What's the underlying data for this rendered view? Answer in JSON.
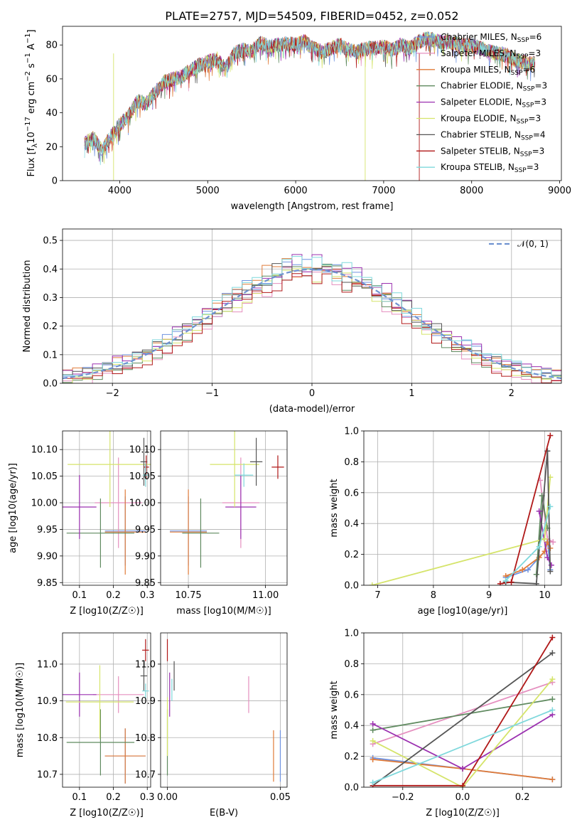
{
  "colors": {
    "chabrier_miles": "#6f92e0",
    "salpeter_miles": "#e58fbf",
    "kroupa_miles": "#e07b39",
    "chabrier_elodie": "#5f8a5f",
    "salpeter_elodie": "#9b30b0",
    "kroupa_elodie": "#d5e46a",
    "chabrier_stelib": "#555555",
    "salpeter_stelib": "#b01818",
    "kroupa_stelib": "#7fd8dc",
    "normal": "#6f92d0",
    "grid": "#b0b0b0"
  },
  "legend_entries": [
    {
      "base": "Chabrier MILES, N",
      "sub": "SSP",
      "tail": "=6"
    },
    {
      "base": "Salpeter MILES, N",
      "sub": "SSP",
      "tail": "=3"
    },
    {
      "base": "Kroupa MILES, N",
      "sub": "SSP",
      "tail": "=6"
    },
    {
      "base": "Chabrier ELODIE, N",
      "sub": "SSP",
      "tail": "=3"
    },
    {
      "base": "Salpeter ELODIE, N",
      "sub": "SSP",
      "tail": "=3"
    },
    {
      "base": "Kroupa ELODIE, N",
      "sub": "SSP",
      "tail": "=3"
    },
    {
      "base": "Chabrier STELIB, N",
      "sub": "SSP",
      "tail": "=4"
    },
    {
      "base": "Salpeter STELIB, N",
      "sub": "SSP",
      "tail": "=3"
    },
    {
      "base": "Kroupa STELIB, N",
      "sub": "SSP",
      "tail": "=3"
    }
  ],
  "chart_data": [
    {
      "type": "line",
      "title": "PLATE=2757, MJD=54509, FIBERID=0452, z=0.052",
      "xlabel": "wavelength [Angstrom, rest frame]",
      "ylabel": "Flux [fλ10⁻¹⁷ erg cm⁻² s⁻¹ A⁻¹]",
      "xlim": [
        3350,
        9020
      ],
      "ylim": [
        0,
        91
      ],
      "xticks": [
        4000,
        5000,
        6000,
        7000,
        8000,
        9000
      ],
      "yticks": [
        0,
        20,
        40,
        60,
        80
      ],
      "spectrum_envelope": {
        "x": [
          3600,
          3700,
          3800,
          3900,
          4000,
          4100,
          4200,
          4300,
          4400,
          4500,
          4600,
          4700,
          4800,
          4900,
          5000,
          5100,
          5200,
          5300,
          5400,
          5500,
          5600,
          5700,
          5800,
          5900,
          6000,
          6100,
          6200,
          6300,
          6400,
          6500,
          6600,
          6700,
          6800,
          6900,
          7000,
          7100,
          7200,
          7300,
          7400,
          7500,
          7600,
          7700,
          7800,
          7900,
          8000,
          8100,
          8200,
          8300,
          8400,
          8500,
          8600,
          8700
        ],
        "y": [
          22,
          25,
          18,
          26,
          33,
          38,
          47,
          45,
          52,
          58,
          60,
          61,
          65,
          68,
          70,
          72,
          66,
          75,
          77,
          76,
          81,
          79,
          80,
          81,
          80,
          82,
          78,
          76,
          78,
          80,
          77,
          76,
          78,
          78,
          79,
          77,
          80,
          78,
          82,
          84,
          82,
          82,
          81,
          80,
          80,
          78,
          76,
          75,
          74,
          71,
          70,
          69
        ]
      },
      "legend_loc": "upper right"
    },
    {
      "type": "histogram",
      "xlabel": "(data-model)/error",
      "ylabel": "Normed distribution",
      "xlim": [
        -2.5,
        2.5
      ],
      "ylim": [
        0,
        0.54
      ],
      "xticks": [
        -2,
        -1,
        0,
        1,
        2
      ],
      "yticks": [
        0.0,
        0.1,
        0.2,
        0.3,
        0.4,
        0.5
      ],
      "bin_width": 0.1,
      "bin_centers": [
        -2.45,
        -2.35,
        -2.25,
        -2.15,
        -2.05,
        -1.95,
        -1.85,
        -1.75,
        -1.65,
        -1.55,
        -1.45,
        -1.35,
        -1.25,
        -1.15,
        -1.05,
        -0.95,
        -0.85,
        -0.75,
        -0.65,
        -0.55,
        -0.45,
        -0.35,
        -0.25,
        -0.15,
        -0.05,
        0.05,
        0.15,
        0.25,
        0.35,
        0.45,
        0.55,
        0.65,
        0.75,
        0.85,
        0.95,
        1.05,
        1.15,
        1.25,
        1.35,
        1.45,
        1.55,
        1.65,
        1.75,
        1.85,
        1.95,
        2.05,
        2.15,
        2.25,
        2.35,
        2.45
      ],
      "series_offsets": [
        0.01,
        -0.02,
        0.015,
        -0.012,
        0.02,
        -0.008,
        0.005,
        -0.018,
        0.012
      ],
      "legend": "𝒩(0, 1)",
      "legend_loc": "upper right"
    },
    {
      "type": "scatter",
      "subtype": "errorbar",
      "xlabel": "Z [log10(Z/Z☉)]",
      "ylabel": "age [log10(age/yr)]",
      "xlim": [
        0.05,
        0.31
      ],
      "ylim": [
        9.845,
        10.135
      ],
      "xticks": [
        0.1,
        0.2,
        0.3
      ],
      "yticks": [
        9.85,
        9.9,
        9.95,
        10.0,
        10.05,
        10.1
      ],
      "points": [
        {
          "x": 0.235,
          "y": 9.947,
          "xerr": 0.06,
          "yerr": 0.065
        },
        {
          "x": 0.215,
          "y": 10.0,
          "xerr": 0.07,
          "yerr": 0.085
        },
        {
          "x": 0.235,
          "y": 9.945,
          "xerr": 0.06,
          "yerr": 0.08
        },
        {
          "x": 0.162,
          "y": 9.943,
          "xerr": 0.1,
          "yerr": 0.065
        },
        {
          "x": 0.1,
          "y": 9.992,
          "xerr": 0.05,
          "yerr": 0.06
        },
        {
          "x": 0.19,
          "y": 10.072,
          "xerr": 0.125,
          "yerr": 0.08
        },
        {
          "x": 0.29,
          "y": 10.077,
          "xerr": 0.01,
          "yerr": 0.045
        },
        {
          "x": 0.297,
          "y": 10.067,
          "xerr": 0.008,
          "yerr": 0.022
        },
        {
          "x": 0.295,
          "y": 10.052,
          "xerr": 0.008,
          "yerr": 0.022
        }
      ]
    },
    {
      "type": "scatter",
      "subtype": "errorbar",
      "xlabel": "mass [log10(M/M☉)]",
      "ylabel": "",
      "xlim": [
        10.66,
        11.07
      ],
      "ylim": [
        9.845,
        10.135
      ],
      "xticks": [
        10.75,
        11.0
      ],
      "yticks": [
        9.85,
        9.9,
        9.95,
        10.0,
        10.05,
        10.1
      ],
      "points": [
        {
          "x": 10.75,
          "y": 9.947,
          "xerr": 0.06,
          "yerr": 0.065
        },
        {
          "x": 10.92,
          "y": 10.0,
          "xerr": 0.06,
          "yerr": 0.085
        },
        {
          "x": 10.75,
          "y": 9.945,
          "xerr": 0.06,
          "yerr": 0.08
        },
        {
          "x": 10.79,
          "y": 9.943,
          "xerr": 0.06,
          "yerr": 0.065
        },
        {
          "x": 10.92,
          "y": 9.992,
          "xerr": 0.05,
          "yerr": 0.06
        },
        {
          "x": 10.9,
          "y": 10.072,
          "xerr": 0.08,
          "yerr": 0.08
        },
        {
          "x": 10.97,
          "y": 10.077,
          "xerr": 0.02,
          "yerr": 0.045
        },
        {
          "x": 11.04,
          "y": 10.067,
          "xerr": 0.02,
          "yerr": 0.022
        },
        {
          "x": 10.93,
          "y": 10.052,
          "xerr": 0.03,
          "yerr": 0.022
        }
      ]
    },
    {
      "type": "line",
      "xlabel": "age [log10(age/yr)]",
      "ylabel": "mass weight",
      "xlim": [
        6.75,
        10.3
      ],
      "ylim": [
        0,
        1.0
      ],
      "xticks": [
        7,
        8,
        9,
        10
      ],
      "yticks": [
        0.0,
        0.2,
        0.4,
        0.6,
        0.8,
        1.0
      ],
      "series": [
        {
          "x": [
            9.3,
            9.7,
            10.0,
            10.05,
            10.1
          ],
          "y": [
            0.05,
            0.1,
            0.22,
            0.3,
            0.1
          ]
        },
        {
          "x": [
            9.92,
            10.05,
            10.15
          ],
          "y": [
            0.68,
            0.3,
            0.28
          ]
        },
        {
          "x": [
            9.3,
            9.6,
            9.9,
            10.0,
            10.05,
            10.1
          ],
          "y": [
            0.06,
            0.1,
            0.18,
            0.22,
            0.28,
            0.24
          ]
        },
        {
          "x": [
            9.85,
            9.95,
            10.05
          ],
          "y": [
            0.07,
            0.58,
            0.37
          ]
        },
        {
          "x": [
            9.9,
            10.05,
            10.12
          ],
          "y": [
            0.48,
            0.18,
            0.13
          ]
        },
        {
          "x": [
            6.9,
            10.0,
            10.1
          ],
          "y": [
            0.0,
            0.3,
            0.7
          ]
        },
        {
          "x": [
            9.3,
            9.85,
            10.05,
            10.1
          ],
          "y": [
            0.02,
            0.01,
            0.87,
            0.09
          ]
        },
        {
          "x": [
            9.2,
            9.4,
            10.1
          ],
          "y": [
            0.01,
            0.02,
            0.97
          ]
        },
        {
          "x": [
            9.3,
            9.9,
            10.1
          ],
          "y": [
            0.03,
            0.25,
            0.51
          ]
        }
      ]
    },
    {
      "type": "scatter",
      "subtype": "errorbar",
      "xlabel": "Z [log10(Z/Z☉)]",
      "ylabel": "mass [log10(M/M☉)]",
      "xlim": [
        0.05,
        0.31
      ],
      "ylim": [
        10.665,
        11.085
      ],
      "xticks": [
        0.1,
        0.2,
        0.3
      ],
      "yticks": [
        10.7,
        10.8,
        10.9,
        11.0
      ],
      "points": [
        {
          "x": 0.235,
          "y": 10.75,
          "xerr": 0.06,
          "yerr": 0.075
        },
        {
          "x": 0.215,
          "y": 10.917,
          "xerr": 0.075,
          "yerr": 0.05
        },
        {
          "x": 0.235,
          "y": 10.75,
          "xerr": 0.06,
          "yerr": 0.075
        },
        {
          "x": 0.162,
          "y": 10.787,
          "xerr": 0.1,
          "yerr": 0.09
        },
        {
          "x": 0.1,
          "y": 10.917,
          "xerr": 0.05,
          "yerr": 0.06
        },
        {
          "x": 0.16,
          "y": 10.897,
          "xerr": 0.1,
          "yerr": 0.1
        },
        {
          "x": 0.29,
          "y": 10.968,
          "xerr": 0.01,
          "yerr": 0.04
        },
        {
          "x": 0.295,
          "y": 11.038,
          "xerr": 0.01,
          "yerr": 0.03
        },
        {
          "x": 0.295,
          "y": 10.927,
          "xerr": 0.01,
          "yerr": 0.02
        }
      ]
    },
    {
      "type": "scatter",
      "subtype": "errorbar",
      "xlabel": "E(B-V)",
      "ylabel": "",
      "xlim": [
        -0.003,
        0.053
      ],
      "ylim": [
        10.665,
        11.085
      ],
      "xticks": [
        0.0,
        0.05
      ],
      "yticks": [
        10.7,
        10.8,
        10.9,
        11.0
      ],
      "points": [
        {
          "x": 0.05,
          "y": 10.75,
          "xerr": 0,
          "yerr": 0.07
        },
        {
          "x": 0.036,
          "y": 10.917,
          "xerr": 0,
          "yerr": 0.05
        },
        {
          "x": 0.047,
          "y": 10.75,
          "xerr": 0,
          "yerr": 0.07
        },
        {
          "x": 0.0,
          "y": 10.787,
          "xerr": 0,
          "yerr": 0.09
        },
        {
          "x": 0.001,
          "y": 10.917,
          "xerr": 0,
          "yerr": 0.06
        },
        {
          "x": 0.0,
          "y": 10.83,
          "xerr": 0,
          "yerr": 0.08
        },
        {
          "x": 0.003,
          "y": 10.968,
          "xerr": 0,
          "yerr": 0.04
        },
        {
          "x": 0.0,
          "y": 11.038,
          "xerr": 0,
          "yerr": 0.03
        },
        {
          "x": 0.002,
          "y": 10.93,
          "xerr": 0,
          "yerr": 0.03
        }
      ]
    },
    {
      "type": "line",
      "xlabel": "Z [log10(Z/Z☉)]",
      "ylabel": "mass weight",
      "xlim": [
        -0.33,
        0.33
      ],
      "ylim": [
        0,
        1.0
      ],
      "xticks": [
        -0.2,
        0.0,
        0.2
      ],
      "yticks": [
        0.0,
        0.2,
        0.4,
        0.6,
        0.8,
        1.0
      ],
      "series": [
        {
          "x": [
            -0.3,
            0.0,
            0.3
          ],
          "y": [
            0.19,
            0.12,
            0.05
          ]
        },
        {
          "x": [
            -0.3,
            0.3
          ],
          "y": [
            0.28,
            0.68
          ]
        },
        {
          "x": [
            -0.3,
            0.0,
            0.3
          ],
          "y": [
            0.18,
            0.12,
            0.05
          ]
        },
        {
          "x": [
            -0.3,
            0.3
          ],
          "y": [
            0.37,
            0.57
          ]
        },
        {
          "x": [
            -0.3,
            0.0,
            0.3
          ],
          "y": [
            0.41,
            0.12,
            0.47
          ]
        },
        {
          "x": [
            -0.3,
            0.0,
            0.3
          ],
          "y": [
            0.3,
            0.0,
            0.7
          ]
        },
        {
          "x": [
            -0.3,
            0.3
          ],
          "y": [
            0.01,
            0.87
          ]
        },
        {
          "x": [
            -0.3,
            0.0,
            0.3
          ],
          "y": [
            0.01,
            0.01,
            0.97
          ]
        },
        {
          "x": [
            -0.3,
            0.3
          ],
          "y": [
            0.03,
            0.5
          ]
        }
      ]
    }
  ]
}
